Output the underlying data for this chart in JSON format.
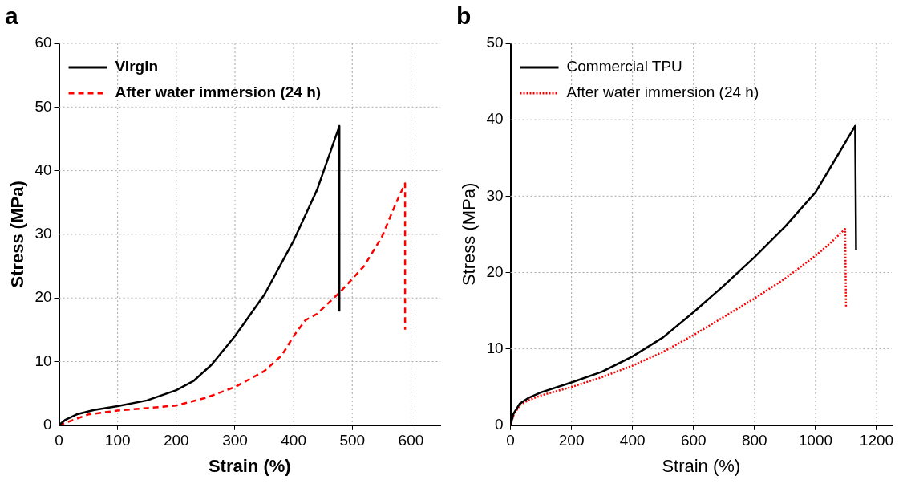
{
  "chart_data": [
    {
      "type": "line",
      "title": "a",
      "xlabel": "Strain (%)",
      "ylabel": "Stress (MPa)",
      "xlim": [
        0,
        650
      ],
      "xticks": [
        0,
        100,
        200,
        300,
        400,
        500,
        600
      ],
      "ylim": [
        0,
        60
      ],
      "yticks": [
        0,
        10,
        20,
        30,
        40,
        50,
        60
      ],
      "grid": true,
      "legend": "top left",
      "marker": "none",
      "series": [
        {
          "name": "Virgin",
          "color": "#000000",
          "line_style": "solid",
          "x": [
            0,
            10,
            30,
            60,
            100,
            150,
            200,
            230,
            260,
            300,
            350,
            400,
            440,
            478,
            478
          ],
          "values": [
            0,
            0.8,
            1.7,
            2.4,
            3,
            3.9,
            5.5,
            7,
            9.5,
            14,
            20.5,
            29,
            37,
            47,
            18
          ]
        },
        {
          "name": "After water immersion (24 h)",
          "color": "#ff0000",
          "line_style": "dashed",
          "x": [
            0,
            50,
            100,
            150,
            200,
            250,
            300,
            350,
            380,
            400,
            420,
            440,
            480,
            520,
            550,
            575,
            590,
            590
          ],
          "values": [
            0,
            1.7,
            2.3,
            2.7,
            3.1,
            4.3,
            6,
            8.5,
            11,
            14,
            16.5,
            17.5,
            21,
            25,
            29.5,
            35,
            38,
            15
          ]
        }
      ]
    },
    {
      "type": "line",
      "title": "b",
      "xlabel": "Strain (%)",
      "ylabel": "Stress (MPa)",
      "xlim": [
        0,
        1250
      ],
      "xticks": [
        0,
        200,
        400,
        600,
        800,
        1000,
        1200
      ],
      "ylim": [
        0,
        50
      ],
      "yticks": [
        0,
        10,
        20,
        30,
        40,
        50
      ],
      "grid": true,
      "legend": "top left",
      "marker": "none",
      "series": [
        {
          "name": "Commercial TPU",
          "color": "#000000",
          "line_style": "solid",
          "x": [
            0,
            10,
            30,
            60,
            100,
            200,
            300,
            400,
            500,
            600,
            700,
            800,
            900,
            1000,
            1060,
            1130,
            1133
          ],
          "values": [
            0,
            1.5,
            2.8,
            3.6,
            4.3,
            5.6,
            7,
            9,
            11.5,
            14.8,
            18.3,
            22,
            26,
            30.5,
            34.5,
            39.2,
            23
          ]
        },
        {
          "name": "After water immersion (24 h)",
          "color": "#ff0000",
          "line_style": "dotted",
          "x": [
            0,
            10,
            30,
            60,
            100,
            200,
            300,
            400,
            500,
            600,
            700,
            800,
            900,
            1000,
            1050,
            1097,
            1100
          ],
          "values": [
            0,
            1.3,
            2.6,
            3.3,
            3.9,
            5,
            6.3,
            7.8,
            9.6,
            11.8,
            14.2,
            16.6,
            19.2,
            22.2,
            23.9,
            25.7,
            15.5
          ]
        }
      ]
    }
  ]
}
